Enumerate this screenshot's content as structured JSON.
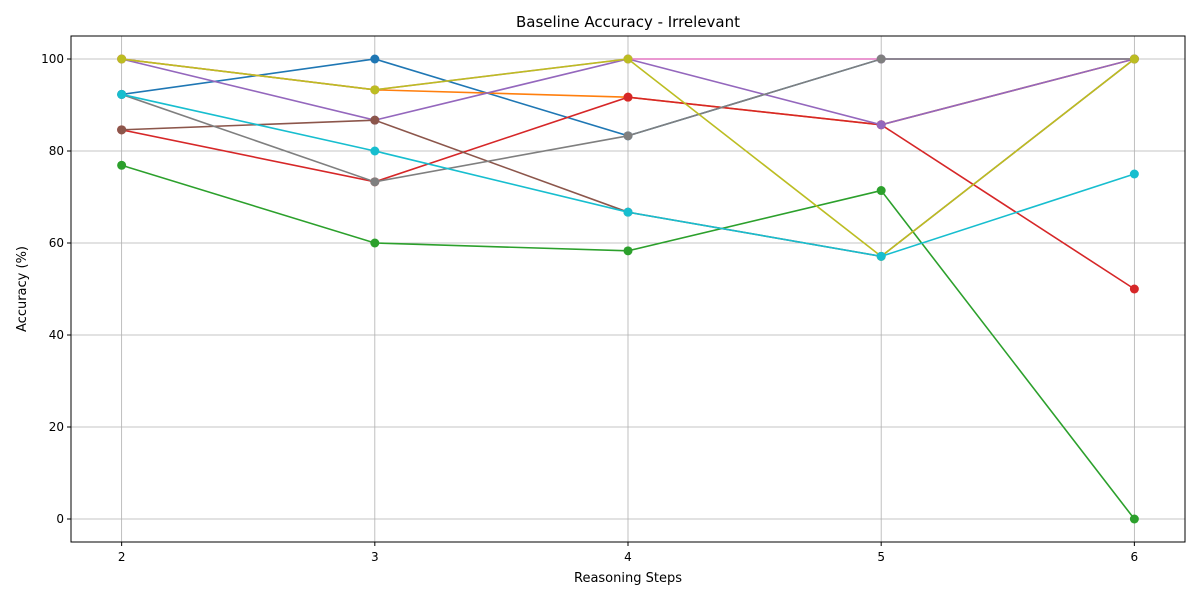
{
  "chart_data": {
    "type": "line",
    "title": "Baseline Accuracy - Irrelevant",
    "xlabel": "Reasoning Steps",
    "ylabel": "Accuracy (%)",
    "x": [
      2,
      3,
      4,
      5,
      6
    ],
    "xticks": [
      2,
      3,
      4,
      5,
      6
    ],
    "yticks": [
      0,
      20,
      40,
      60,
      80,
      100
    ],
    "xlim": [
      1.8,
      6.2
    ],
    "ylim": [
      -5,
      105
    ],
    "grid": true,
    "marker": "circle",
    "series": [
      {
        "color": "#1f77b4",
        "values": [
          92.3,
          100,
          83.3,
          100,
          100
        ]
      },
      {
        "color": "#ff7f0e",
        "values": [
          100,
          93.3,
          91.7,
          85.7,
          100
        ]
      },
      {
        "color": "#2ca02c",
        "values": [
          76.9,
          60,
          58.3,
          71.4,
          0
        ]
      },
      {
        "color": "#d62728",
        "values": [
          84.6,
          73.3,
          91.7,
          85.7,
          50
        ]
      },
      {
        "color": "#9467bd",
        "values": [
          100,
          86.7,
          100,
          85.7,
          100
        ]
      },
      {
        "color": "#8c564b",
        "values": [
          84.6,
          86.7,
          66.7,
          57.1,
          100
        ]
      },
      {
        "color": "#e377c2",
        "values": [
          100,
          93.3,
          100,
          100,
          100
        ]
      },
      {
        "color": "#7f7f7f",
        "values": [
          92.3,
          73.3,
          83.3,
          100,
          100
        ]
      },
      {
        "color": "#bcbd22",
        "values": [
          100,
          93.3,
          100,
          57.1,
          100
        ]
      },
      {
        "color": "#17becf",
        "values": [
          92.3,
          80,
          66.7,
          57.1,
          75
        ]
      }
    ]
  }
}
